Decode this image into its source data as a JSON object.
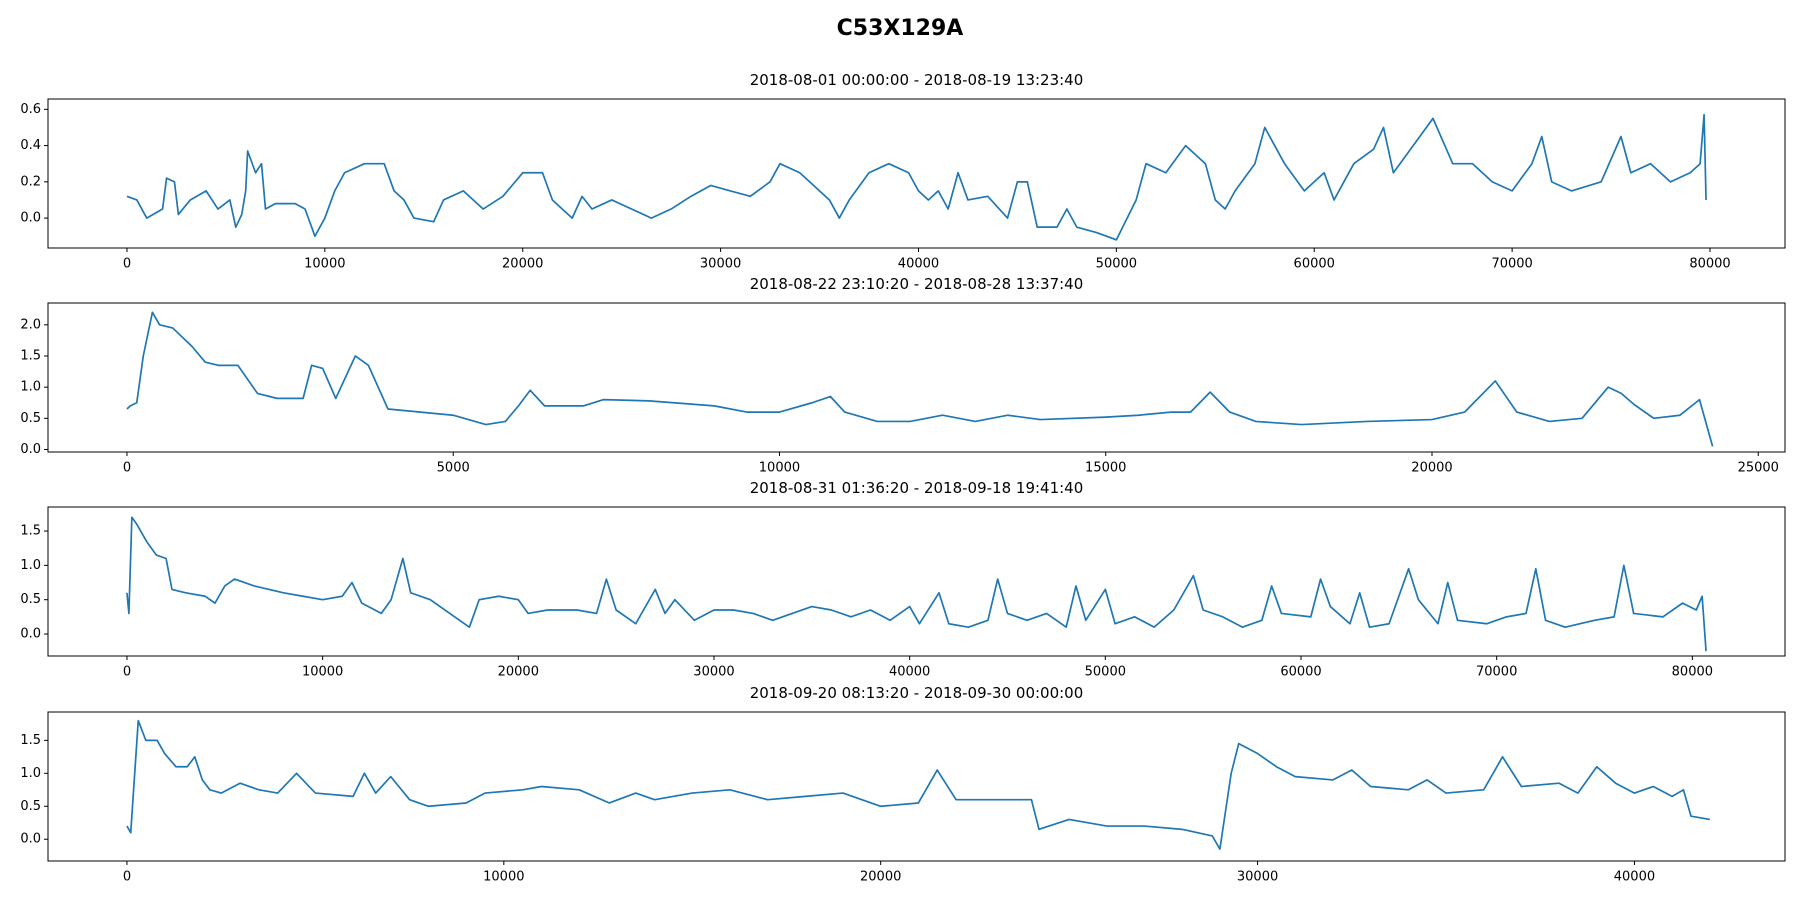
{
  "title": "C53X129A",
  "chart_data": [
    {
      "type": "line",
      "title": "2018-08-01 00:00:00 - 2018-08-19 13:23:40",
      "color": "#1f77b4",
      "xlim": [
        -3990,
        83790
      ],
      "xticks": [
        0,
        10000,
        20000,
        30000,
        40000,
        50000,
        60000,
        70000,
        80000
      ],
      "ylim": [
        -0.165,
        0.657
      ],
      "yticks": [
        {
          "value": 0,
          "label": "0.0"
        },
        0.2,
        0.4,
        0.6
      ],
      "x": [
        0,
        500,
        1000,
        1800,
        2000,
        2400,
        2600,
        3200,
        4000,
        4600,
        5200,
        5500,
        5800,
        6000,
        6100,
        6500,
        6800,
        7000,
        7500,
        8500,
        9000,
        9500,
        10000,
        10500,
        11000,
        12000,
        13000,
        13500,
        14000,
        14500,
        15500,
        16000,
        17000,
        18000,
        19000,
        20000,
        21000,
        21500,
        22500,
        23000,
        23500,
        24500,
        25500,
        26500,
        27500,
        28500,
        29500,
        30500,
        31500,
        32500,
        33000,
        34000,
        35000,
        35500,
        36000,
        36500,
        37500,
        38500,
        39500,
        40000,
        40500,
        41000,
        41500,
        42000,
        42500,
        43500,
        44500,
        45000,
        45500,
        46000,
        47000,
        47500,
        48000,
        49000,
        50000,
        51000,
        51500,
        52500,
        53500,
        54500,
        55000,
        55500,
        56000,
        57000,
        57500,
        58500,
        59500,
        60500,
        61000,
        62000,
        63000,
        63500,
        64000,
        65000,
        66000,
        67000,
        68000,
        69000,
        70000,
        71000,
        71500,
        72000,
        73000,
        74500,
        75500,
        76000,
        77000,
        78000,
        79000,
        79500,
        79700,
        79800
      ],
      "values": [
        0.12,
        0.1,
        0.0,
        0.05,
        0.22,
        0.2,
        0.02,
        0.1,
        0.15,
        0.05,
        0.1,
        -0.05,
        0.02,
        0.15,
        0.37,
        0.25,
        0.3,
        0.05,
        0.08,
        0.08,
        0.05,
        -0.1,
        0.0,
        0.15,
        0.25,
        0.3,
        0.3,
        0.15,
        0.1,
        0.0,
        -0.02,
        0.1,
        0.15,
        0.05,
        0.12,
        0.25,
        0.25,
        0.1,
        0.0,
        0.12,
        0.05,
        0.1,
        0.05,
        0.0,
        0.05,
        0.12,
        0.18,
        0.15,
        0.12,
        0.2,
        0.3,
        0.25,
        0.15,
        0.1,
        0.0,
        0.1,
        0.25,
        0.3,
        0.25,
        0.15,
        0.1,
        0.15,
        0.05,
        0.25,
        0.1,
        0.12,
        0.0,
        0.2,
        0.2,
        -0.05,
        -0.05,
        0.05,
        -0.05,
        -0.08,
        -0.12,
        0.1,
        0.3,
        0.25,
        0.4,
        0.3,
        0.1,
        0.05,
        0.15,
        0.3,
        0.5,
        0.3,
        0.15,
        0.25,
        0.1,
        0.3,
        0.38,
        0.5,
        0.25,
        0.4,
        0.55,
        0.3,
        0.3,
        0.2,
        0.15,
        0.3,
        0.45,
        0.2,
        0.15,
        0.2,
        0.45,
        0.25,
        0.3,
        0.2,
        0.25,
        0.3,
        0.57,
        0.1
      ]
    },
    {
      "type": "line",
      "title": "2018-08-22 23:10:20 - 2018-08-28 13:37:40",
      "color": "#1f77b4",
      "xlim": [
        -1210,
        25410
      ],
      "xticks": [
        0,
        5000,
        10000,
        15000,
        20000,
        25000
      ],
      "ylim": [
        -0.04,
        2.35
      ],
      "yticks": [
        {
          "value": 0,
          "label": "0.0"
        },
        0.5,
        {
          "value": 1,
          "label": "1.0"
        },
        1.5,
        {
          "value": 2,
          "label": "2.0"
        }
      ],
      "x": [
        0,
        50,
        150,
        250,
        390,
        500,
        700,
        1000,
        1200,
        1400,
        1700,
        2000,
        2300,
        2700,
        2830,
        3000,
        3200,
        3500,
        3700,
        4000,
        4500,
        5000,
        5500,
        5800,
        6000,
        6180,
        6400,
        7000,
        7300,
        8000,
        9000,
        9500,
        10000,
        10500,
        10780,
        11000,
        11500,
        12000,
        12500,
        13000,
        13500,
        14000,
        15000,
        15500,
        16000,
        16300,
        16600,
        16900,
        17300,
        18000,
        19000,
        20000,
        20500,
        20970,
        21300,
        21800,
        22300,
        22700,
        22900,
        23100,
        23400,
        23800,
        24100,
        24300
      ],
      "values": [
        0.65,
        0.7,
        0.75,
        1.5,
        2.2,
        2.0,
        1.95,
        1.65,
        1.4,
        1.35,
        1.35,
        0.9,
        0.82,
        0.82,
        1.35,
        1.3,
        0.82,
        1.5,
        1.35,
        0.65,
        0.6,
        0.55,
        0.4,
        0.45,
        0.7,
        0.95,
        0.7,
        0.7,
        0.8,
        0.78,
        0.7,
        0.6,
        0.6,
        0.75,
        0.85,
        0.6,
        0.45,
        0.45,
        0.55,
        0.45,
        0.55,
        0.48,
        0.52,
        0.55,
        0.6,
        0.6,
        0.92,
        0.6,
        0.45,
        0.4,
        0.45,
        0.48,
        0.6,
        1.1,
        0.6,
        0.45,
        0.5,
        1.0,
        0.9,
        0.72,
        0.5,
        0.55,
        0.8,
        0.05
      ]
    },
    {
      "type": "line",
      "title": "2018-08-31 01:36:20 - 2018-09-18 19:41:40",
      "color": "#1f77b4",
      "xlim": [
        -4035,
        84735
      ],
      "xticks": [
        0,
        10000,
        20000,
        30000,
        40000,
        50000,
        60000,
        70000,
        80000
      ],
      "ylim": [
        -0.32,
        1.85
      ],
      "yticks": [
        {
          "value": 0,
          "label": "0.0"
        },
        0.5,
        {
          "value": 1,
          "label": "1.0"
        },
        1.5
      ],
      "x": [
        0,
        100,
        250,
        500,
        1000,
        1500,
        2000,
        2300,
        3000,
        4000,
        4500,
        5000,
        5500,
        6500,
        8000,
        9000,
        10000,
        11000,
        11500,
        12000,
        13000,
        13500,
        14100,
        14500,
        15500,
        16500,
        17500,
        18000,
        19000,
        20000,
        20500,
        21500,
        23000,
        24000,
        24500,
        25000,
        26000,
        27000,
        27500,
        28000,
        29000,
        30000,
        31000,
        32000,
        33000,
        34000,
        35000,
        36000,
        37000,
        38000,
        39000,
        40000,
        40500,
        41500,
        42000,
        43000,
        44000,
        44500,
        45000,
        46000,
        47000,
        48000,
        48500,
        49000,
        50000,
        50500,
        51500,
        52500,
        53500,
        54500,
        55000,
        56000,
        57000,
        58000,
        58500,
        59000,
        60500,
        61000,
        61500,
        62500,
        63000,
        63500,
        64500,
        65500,
        66000,
        67000,
        67500,
        68000,
        69500,
        70500,
        71500,
        72000,
        72500,
        73500,
        75000,
        76000,
        76500,
        77000,
        78500,
        79500,
        80200,
        80500,
        80700
      ],
      "values": [
        0.6,
        0.3,
        1.7,
        1.6,
        1.35,
        1.15,
        1.1,
        0.65,
        0.6,
        0.55,
        0.45,
        0.7,
        0.8,
        0.7,
        0.6,
        0.55,
        0.5,
        0.55,
        0.75,
        0.45,
        0.3,
        0.5,
        1.1,
        0.6,
        0.5,
        0.3,
        0.1,
        0.5,
        0.55,
        0.5,
        0.3,
        0.35,
        0.35,
        0.3,
        0.8,
        0.35,
        0.15,
        0.65,
        0.3,
        0.5,
        0.2,
        0.35,
        0.35,
        0.3,
        0.2,
        0.3,
        0.4,
        0.35,
        0.25,
        0.35,
        0.2,
        0.4,
        0.15,
        0.6,
        0.15,
        0.1,
        0.2,
        0.8,
        0.3,
        0.2,
        0.3,
        0.1,
        0.7,
        0.2,
        0.65,
        0.15,
        0.25,
        0.1,
        0.35,
        0.85,
        0.35,
        0.25,
        0.1,
        0.2,
        0.7,
        0.3,
        0.25,
        0.8,
        0.4,
        0.15,
        0.6,
        0.1,
        0.15,
        0.95,
        0.5,
        0.15,
        0.75,
        0.2,
        0.15,
        0.25,
        0.3,
        0.95,
        0.2,
        0.1,
        0.2,
        0.25,
        1.0,
        0.3,
        0.25,
        0.45,
        0.35,
        0.55,
        -0.25
      ]
    },
    {
      "type": "line",
      "title": "2018-09-20 08:13:20 - 2018-09-30 00:00:00",
      "color": "#1f77b4",
      "xlim": [
        -2095,
        43995
      ],
      "xticks": [
        0,
        10000,
        20000,
        30000,
        40000
      ],
      "ylim": [
        -0.33,
        1.93
      ],
      "yticks": [
        {
          "value": 0,
          "label": "0.0"
        },
        0.5,
        {
          "value": 1,
          "label": "1.0"
        },
        1.5
      ],
      "x": [
        0,
        100,
        300,
        500,
        800,
        1000,
        1300,
        1600,
        1800,
        2000,
        2200,
        2500,
        3000,
        3500,
        4000,
        4500,
        5000,
        6000,
        6300,
        6600,
        7000,
        7500,
        8000,
        9000,
        9500,
        10500,
        11000,
        12000,
        12800,
        13500,
        14000,
        15000,
        16000,
        17000,
        18000,
        19000,
        19500,
        20000,
        21000,
        21500,
        22000,
        23000,
        24000,
        24200,
        25000,
        26000,
        27000,
        28000,
        28800,
        29000,
        29300,
        29500,
        30000,
        30500,
        31000,
        32000,
        32500,
        33000,
        34000,
        34500,
        35000,
        36000,
        36500,
        37000,
        38000,
        38500,
        39000,
        39500,
        40000,
        40500,
        41000,
        41300,
        41500,
        42000
      ],
      "values": [
        0.2,
        0.1,
        1.8,
        1.5,
        1.5,
        1.3,
        1.1,
        1.1,
        1.25,
        0.9,
        0.75,
        0.7,
        0.85,
        0.75,
        0.7,
        1.0,
        0.7,
        0.65,
        1.0,
        0.7,
        0.95,
        0.6,
        0.5,
        0.55,
        0.7,
        0.75,
        0.8,
        0.75,
        0.55,
        0.7,
        0.6,
        0.7,
        0.75,
        0.6,
        0.65,
        0.7,
        0.6,
        0.5,
        0.55,
        1.05,
        0.6,
        0.6,
        0.6,
        0.15,
        0.3,
        0.2,
        0.2,
        0.15,
        0.05,
        -0.15,
        1.0,
        1.45,
        1.3,
        1.1,
        0.95,
        0.9,
        1.05,
        0.8,
        0.75,
        0.9,
        0.7,
        0.75,
        1.25,
        0.8,
        0.85,
        0.7,
        1.1,
        0.85,
        0.7,
        0.8,
        0.65,
        0.75,
        0.35,
        0.3
      ]
    }
  ]
}
